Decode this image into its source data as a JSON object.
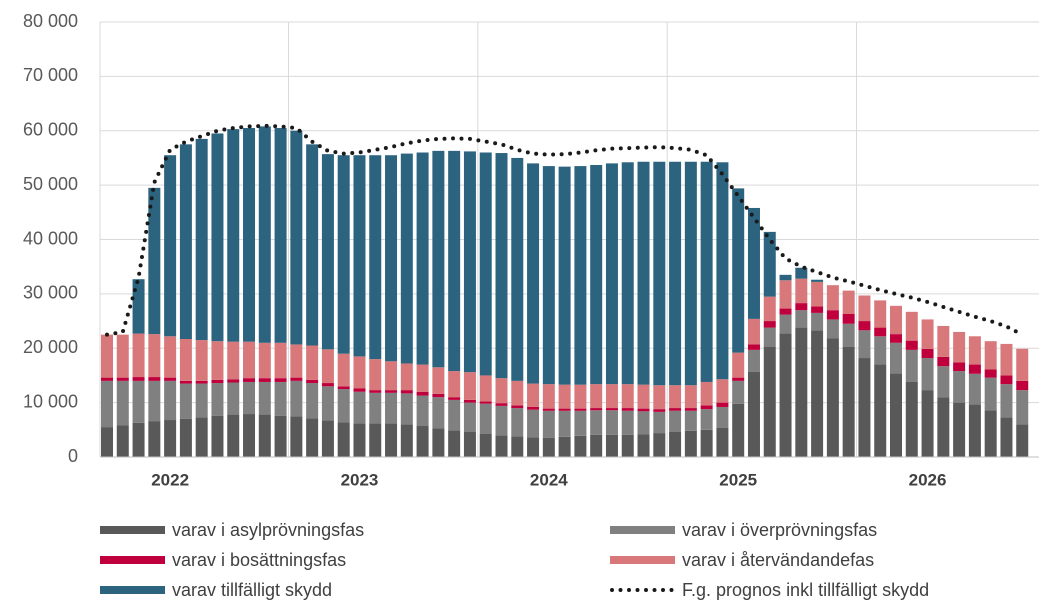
{
  "chart_data": {
    "type": "bar",
    "stacked": true,
    "categories": [
      null,
      null,
      null,
      null,
      "2022",
      null,
      null,
      null,
      null,
      null,
      null,
      null,
      null,
      null,
      null,
      null,
      "2023",
      null,
      null,
      null,
      null,
      null,
      null,
      null,
      null,
      null,
      null,
      null,
      "2024",
      null,
      null,
      null,
      null,
      null,
      null,
      null,
      null,
      null,
      null,
      null,
      "2025",
      null,
      null,
      null,
      null,
      null,
      null,
      null,
      null,
      null,
      null,
      null,
      "2026",
      null,
      null,
      null,
      null,
      null,
      null
    ],
    "ylim": [
      0,
      80000
    ],
    "yticks": [
      0,
      {
        "value": 10000,
        "label": "10 000"
      },
      {
        "value": 20000,
        "label": "20 000"
      },
      {
        "value": 30000,
        "label": "30 000"
      },
      {
        "value": 40000,
        "label": "40 000"
      },
      {
        "value": 50000,
        "label": "50 000"
      },
      {
        "value": 60000,
        "label": "60 000"
      },
      {
        "value": 70000,
        "label": "70 000"
      },
      {
        "value": 80000,
        "label": "80 000"
      }
    ],
    "grid": true,
    "legend": "bottom",
    "series": [
      {
        "name": "varav i asylprövningsfas",
        "color": "#595959",
        "values": [
          5500,
          5800,
          6300,
          6600,
          6800,
          7000,
          7300,
          7600,
          7800,
          7900,
          7800,
          7600,
          7500,
          7100,
          6700,
          6400,
          6200,
          6200,
          6200,
          6000,
          5700,
          5300,
          4900,
          4600,
          4300,
          4000,
          3800,
          3600,
          3500,
          3700,
          3900,
          4100,
          4100,
          4100,
          4200,
          4400,
          4600,
          4800,
          5000,
          5400,
          9800,
          15700,
          20300,
          22700,
          23800,
          23300,
          21800,
          20300,
          18200,
          17000,
          15400,
          13800,
          12300,
          11000,
          10000,
          9700,
          8600,
          7300,
          6000
        ]
      },
      {
        "name": "varav i överprövningsfas",
        "color": "#808080",
        "values": [
          8500,
          8200,
          7700,
          7400,
          7200,
          6500,
          6200,
          6000,
          5900,
          5900,
          6000,
          6200,
          6500,
          6500,
          6300,
          6100,
          5800,
          5600,
          5600,
          5700,
          5600,
          5700,
          5600,
          5400,
          5500,
          5400,
          5200,
          5100,
          5000,
          4800,
          4600,
          4500,
          4500,
          4400,
          4200,
          3900,
          3900,
          3700,
          3800,
          3800,
          4200,
          4000,
          3500,
          3500,
          3200,
          3200,
          3500,
          4200,
          5100,
          5200,
          5600,
          5900,
          5900,
          5700,
          5800,
          5600,
          6000,
          6100,
          6300
        ]
      },
      {
        "name": "varav i bosättningsfas",
        "color": "#c0003c",
        "values": [
          600,
          600,
          700,
          700,
          600,
          500,
          500,
          600,
          600,
          700,
          700,
          700,
          600,
          600,
          600,
          500,
          600,
          500,
          500,
          600,
          700,
          600,
          500,
          500,
          400,
          500,
          500,
          500,
          400,
          400,
          400,
          400,
          400,
          500,
          500,
          500,
          500,
          500,
          700,
          800,
          600,
          1000,
          1200,
          1100,
          1300,
          1200,
          1700,
          1800,
          1700,
          1600,
          1600,
          1700,
          1700,
          1700,
          1600,
          1700,
          1500,
          1600,
          1700
        ]
      },
      {
        "name": "varav i återvändandefas",
        "color": "#d9787a",
        "values": [
          7900,
          7900,
          8000,
          7900,
          7600,
          7700,
          7500,
          7100,
          6900,
          6700,
          6500,
          6500,
          6100,
          6300,
          6200,
          6000,
          5900,
          5700,
          5300,
          4900,
          5000,
          4900,
          4800,
          5100,
          4800,
          4600,
          4500,
          4300,
          4500,
          4400,
          4400,
          4400,
          4400,
          4400,
          4400,
          4400,
          4200,
          4200,
          4300,
          4300,
          4600,
          4700,
          4500,
          5200,
          4500,
          4500,
          4600,
          4300,
          4700,
          5000,
          5200,
          5300,
          5400,
          5700,
          5600,
          5200,
          5200,
          5800,
          5900
        ]
      },
      {
        "name": "varav tillfälligt skydd",
        "color": "#2c6480",
        "values": [
          0,
          0,
          10000,
          26900,
          33300,
          35800,
          37000,
          38200,
          39100,
          39300,
          39800,
          39500,
          39300,
          37000,
          35900,
          36500,
          37000,
          37500,
          37900,
          38600,
          39000,
          39800,
          40500,
          40600,
          41000,
          41400,
          41000,
          40500,
          40100,
          40100,
          40200,
          40300,
          40600,
          40800,
          41000,
          41100,
          41100,
          41100,
          40500,
          39900,
          30200,
          20400,
          11900,
          1000,
          2000,
          400,
          0,
          0,
          0,
          0,
          0,
          0,
          0,
          0,
          0,
          0,
          0,
          0,
          0
        ]
      },
      {
        "name": "F.g. prognos inkl tillfälligt skydd",
        "color": "#1a1a1a",
        "type": "line",
        "style": "dotted",
        "values": [
          22500,
          23000,
          33000,
          50500,
          56500,
          58000,
          59000,
          60000,
          60500,
          60800,
          60900,
          60800,
          60500,
          58000,
          56300,
          55800,
          56000,
          56500,
          57000,
          57700,
          58200,
          58500,
          58600,
          58500,
          58000,
          57500,
          56500,
          55800,
          55600,
          55700,
          56000,
          56400,
          56700,
          56800,
          56900,
          57000,
          56800,
          56500,
          55500,
          52000,
          48000,
          44000,
          40000,
          36500,
          35000,
          34000,
          33000,
          32300,
          31500,
          30700,
          30000,
          29300,
          28500,
          27600,
          26700,
          25800,
          25000,
          24000,
          22500
        ]
      }
    ]
  }
}
